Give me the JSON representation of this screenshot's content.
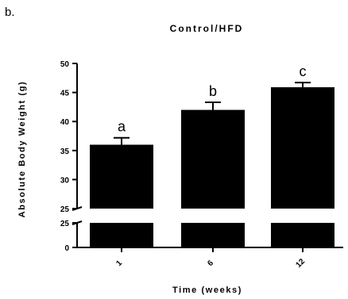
{
  "panel_label": "b.",
  "chart_data": {
    "type": "bar",
    "title": "Control/HFD",
    "xlabel": "Time (weeks)",
    "ylabel": "Absolute Body Weight (g)",
    "categories": [
      "1",
      "6",
      "12"
    ],
    "values": [
      36.0,
      42.0,
      45.9
    ],
    "errors": [
      1.2,
      1.3,
      0.8
    ],
    "annotations": [
      "a",
      "b",
      "c"
    ],
    "ylim": [
      0,
      50
    ],
    "axis_break": {
      "lower_range": [
        0,
        25
      ],
      "upper_range": [
        25,
        50
      ]
    },
    "yticks_upper": [
      25,
      30,
      35,
      40,
      45,
      50
    ],
    "yticks_lower": [
      0,
      25
    ],
    "bar_color": "#000000",
    "grid": false,
    "legend": "none"
  }
}
